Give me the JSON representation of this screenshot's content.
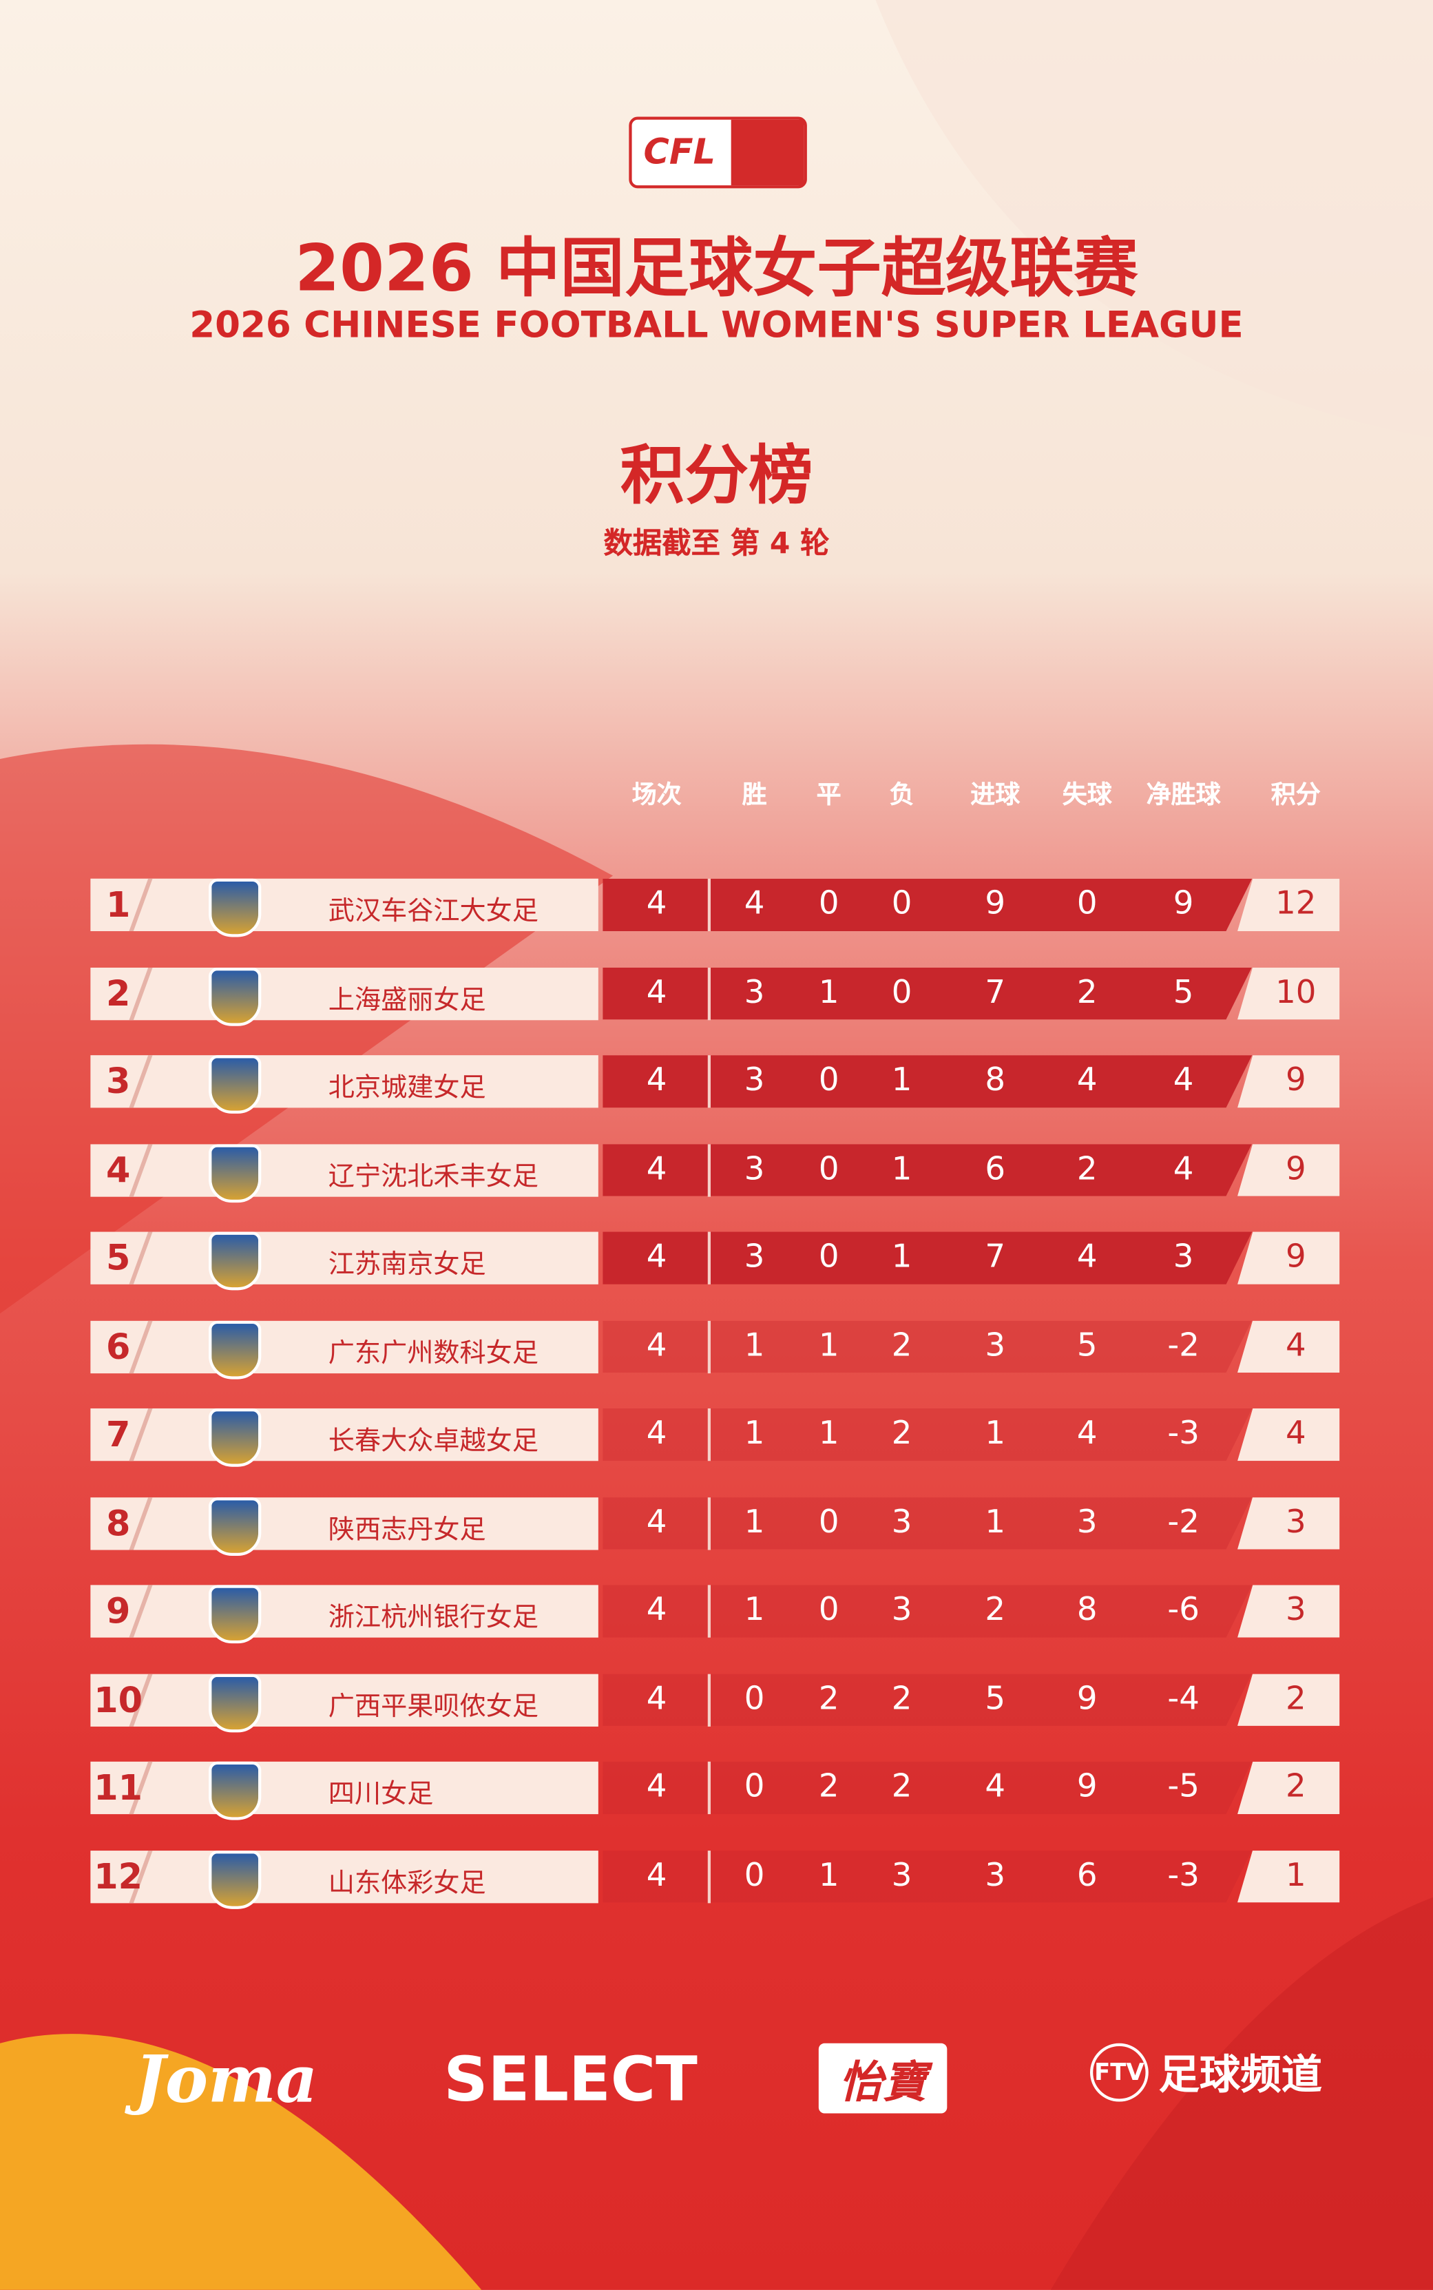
{
  "header": {
    "logo": "CFL",
    "title": "2026 中国足球女子超级联赛",
    "subtitle": "2026 CHINESE FOOTBALL WOMEN'S SUPER LEAGUE",
    "heading": "积分榜",
    "note": "数据截至 第 4 轮"
  },
  "table": {
    "columns": [
      "场次",
      "胜",
      "平",
      "负",
      "进球",
      "失球",
      "净胜球",
      "积分"
    ],
    "rows": [
      {
        "rank": 1,
        "team": "武汉车谷江大女足",
        "values": [
          4,
          4,
          0,
          0,
          9,
          0,
          9,
          12
        ]
      },
      {
        "rank": 2,
        "team": "上海盛丽女足",
        "values": [
          4,
          3,
          1,
          0,
          7,
          2,
          5,
          10
        ]
      },
      {
        "rank": 3,
        "team": "北京城建女足",
        "values": [
          4,
          3,
          0,
          1,
          8,
          4,
          4,
          9
        ]
      },
      {
        "rank": 4,
        "team": "辽宁沈北禾丰女足",
        "values": [
          4,
          3,
          0,
          1,
          6,
          2,
          4,
          9
        ]
      },
      {
        "rank": 5,
        "team": "江苏南京女足",
        "values": [
          4,
          3,
          0,
          1,
          7,
          4,
          3,
          9
        ]
      },
      {
        "rank": 6,
        "team": "广东广州数科女足",
        "values": [
          4,
          1,
          1,
          2,
          3,
          5,
          -2,
          4
        ]
      },
      {
        "rank": 7,
        "team": "长春大众卓越女足",
        "values": [
          4,
          1,
          1,
          2,
          1,
          4,
          -3,
          4
        ]
      },
      {
        "rank": 8,
        "team": "陕西志丹女足",
        "values": [
          4,
          1,
          0,
          3,
          1,
          3,
          -2,
          3
        ]
      },
      {
        "rank": 9,
        "team": "浙江杭州银行女足",
        "values": [
          4,
          1,
          0,
          3,
          2,
          8,
          -6,
          3
        ]
      },
      {
        "rank": 10,
        "team": "广西平果呗侬女足",
        "values": [
          4,
          0,
          2,
          2,
          5,
          9,
          -4,
          2
        ]
      },
      {
        "rank": 11,
        "team": "四川女足",
        "values": [
          4,
          0,
          2,
          2,
          4,
          9,
          -5,
          2
        ]
      },
      {
        "rank": 12,
        "team": "山东体彩女足",
        "values": [
          4,
          0,
          1,
          3,
          3,
          6,
          -3,
          1
        ]
      }
    ]
  },
  "sponsors": [
    "Joma",
    "SELECT",
    "怡寶",
    "FTV",
    "足球频道"
  ]
}
